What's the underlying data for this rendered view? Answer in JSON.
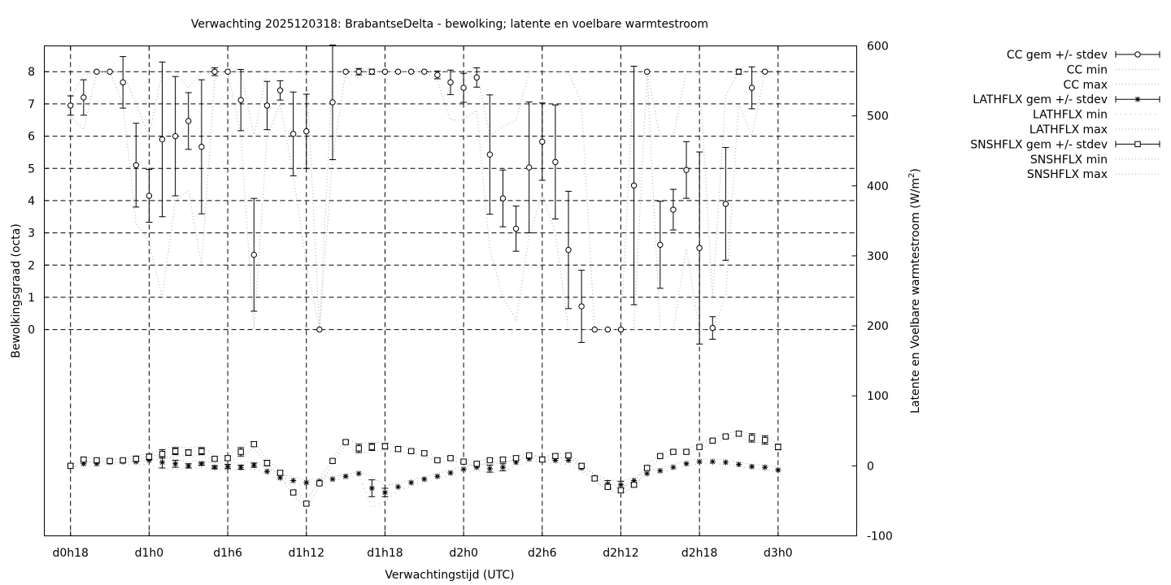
{
  "chart_data": {
    "type": "scatter",
    "title": "Verwachting 2025120318: BrabantseDelta - bewolking; latente en voelbare warmtestroom",
    "xlabel": "Verwachtingstijd (UTC)",
    "ylabel": "Bewolkingsgraad (octa)",
    "y2label_main": "Latente en Voelbare warmtestroom (W/m",
    "y2label_sup": "2",
    "y2label_end": ")",
    "x_ticks": [
      {
        "label": "d0h18",
        "h": 18
      },
      {
        "label": "d1h0",
        "h": 24
      },
      {
        "label": "d1h6",
        "h": 30
      },
      {
        "label": "d1h12",
        "h": 36
      },
      {
        "label": "d1h18",
        "h": 42
      },
      {
        "label": "d2h0",
        "h": 48
      },
      {
        "label": "d2h6",
        "h": 54
      },
      {
        "label": "d2h12",
        "h": 60
      },
      {
        "label": "d2h18",
        "h": 66
      },
      {
        "label": "d3h0",
        "h": 72
      }
    ],
    "xlim_hours": [
      16,
      78
    ],
    "ylim": [
      -6.4,
      8.8
    ],
    "y_ticks": [
      0,
      1,
      2,
      3,
      4,
      5,
      6,
      7,
      8
    ],
    "y2lim": [
      -100,
      600
    ],
    "y2_ticks": [
      -100,
      0,
      100,
      200,
      300,
      400,
      500,
      600
    ],
    "grid": true,
    "legend_position": "outside-right",
    "legend": [
      {
        "label": "CC gem +/- stdev",
        "style": "errorbar-circle"
      },
      {
        "label": "CC min",
        "style": "dotted"
      },
      {
        "label": "CC max",
        "style": "dotted"
      },
      {
        "label": "LATHFLX gem +/- stdev",
        "style": "errorbar-star"
      },
      {
        "label": "LATHFLX min",
        "style": "dotted-sparse"
      },
      {
        "label": "LATHFLX max",
        "style": "dotted"
      },
      {
        "label": "SNSHFLX gem +/- stdev",
        "style": "errorbar-square"
      },
      {
        "label": "SNSHFLX min",
        "style": "dotted"
      },
      {
        "label": "SNSHFLX max",
        "style": "dotted"
      }
    ],
    "x_hours": [
      18,
      19,
      20,
      21,
      22,
      23,
      24,
      25,
      26,
      27,
      28,
      29,
      30,
      31,
      32,
      33,
      34,
      35,
      36,
      37,
      38,
      39,
      40,
      41,
      42,
      43,
      44,
      45,
      46,
      47,
      48,
      49,
      50,
      51,
      52,
      53,
      54,
      55,
      56,
      57,
      58,
      59,
      60,
      61,
      62,
      63,
      64,
      65,
      66,
      67,
      68,
      69,
      70,
      71,
      72
    ],
    "series": [
      {
        "name": "CC gem +/- stdev",
        "axis": "y1",
        "marker": "circle",
        "mean": [
          6.95,
          7.2,
          8,
          8,
          7.67,
          5.1,
          4.15,
          5.9,
          6.0,
          6.47,
          5.67,
          8.0,
          8.0,
          7.12,
          2.32,
          6.95,
          7.42,
          6.07,
          6.15,
          0,
          7.05,
          8,
          8,
          8,
          8,
          8,
          8,
          8,
          7.9,
          7.67,
          7.5,
          7.82,
          5.43,
          4.07,
          3.13,
          5.03,
          5.83,
          5.2,
          2.47,
          0.72,
          0,
          0,
          0,
          4.47,
          8,
          2.63,
          3.72,
          4.95,
          2.53,
          0.05,
          3.9,
          8,
          7.5,
          8,
          null
        ],
        "err": [
          0.3,
          0.55,
          0,
          0,
          0.8,
          1.3,
          0.82,
          2.4,
          1.85,
          0.88,
          2.08,
          0.12,
          0,
          0.95,
          1.75,
          0.75,
          0.3,
          1.3,
          1.15,
          0,
          1.78,
          0,
          0.1,
          0.08,
          0,
          0,
          0,
          0,
          0.12,
          0.38,
          0.45,
          0.3,
          1.85,
          0.88,
          0.7,
          2.03,
          1.2,
          1.77,
          1.82,
          1.12,
          0,
          0,
          0,
          3.7,
          0,
          1.35,
          0.63,
          0.88,
          2.98,
          0.35,
          1.75,
          0.08,
          0.65,
          0,
          null
        ]
      },
      {
        "name": "CC min",
        "axis": "y1",
        "values": [
          6.6,
          6.2,
          8,
          8,
          7,
          3.3,
          2.7,
          1.0,
          4.0,
          4.3,
          2.0,
          7.8,
          8,
          6.0,
          0,
          6.0,
          7.0,
          4.8,
          2.0,
          0,
          5.3,
          8,
          7.8,
          8,
          8,
          8,
          8,
          8,
          7.7,
          6.5,
          6.5,
          6.8,
          2.5,
          1.0,
          0.3,
          2.9,
          4.2,
          3.0,
          0,
          0,
          0,
          0,
          0,
          0,
          8,
          0,
          0,
          2.5,
          0,
          0,
          1.0,
          7.0,
          6.0,
          8,
          null
        ]
      },
      {
        "name": "CC max",
        "axis": "y1",
        "values": [
          7.2,
          7.9,
          8,
          8,
          8,
          7.0,
          6.0,
          8.0,
          8.0,
          7.5,
          8.0,
          8,
          8,
          8,
          6.0,
          8,
          8,
          8,
          8,
          0,
          8,
          8,
          8,
          8,
          8,
          8,
          8,
          8,
          8,
          8,
          8,
          8,
          6.0,
          6.3,
          6.5,
          8,
          8,
          8,
          8,
          7.0,
          0,
          0,
          0,
          8,
          8,
          6.0,
          6.0,
          8,
          8,
          1.0,
          7.3,
          8,
          8,
          8,
          null
        ]
      },
      {
        "name": "LATHFLX gem +/- stdev",
        "axis": "y2",
        "marker": "star",
        "mean": [
          0,
          3,
          3,
          5,
          6,
          6,
          8,
          5,
          3,
          0,
          3,
          -2,
          -1,
          -2,
          1,
          -8,
          -17,
          -21,
          -24,
          -22,
          -19,
          -15,
          -11,
          -32,
          -38,
          -30,
          -24,
          -19,
          -15,
          -10,
          -5,
          -2,
          -4,
          -2,
          5,
          10,
          10,
          8,
          8,
          -3,
          -17,
          -26,
          -27,
          -21,
          -11,
          -7,
          -2,
          3,
          6,
          6,
          5,
          2,
          -1,
          -2,
          -6
        ],
        "err": [
          0,
          0,
          0,
          0,
          0,
          0,
          0,
          8,
          5,
          3,
          2,
          2,
          3,
          3,
          3,
          0,
          0,
          0,
          0,
          0,
          0,
          0,
          0,
          12,
          6,
          0,
          0,
          0,
          0,
          0,
          0,
          0,
          5,
          5,
          0,
          0,
          0,
          0,
          0,
          0,
          0,
          5,
          5,
          0,
          0,
          0,
          0,
          0,
          0,
          0,
          0,
          0,
          0,
          0,
          0
        ]
      },
      {
        "name": "LATHFLX min",
        "axis": "y2",
        "values": [
          -2,
          0,
          0,
          2,
          3,
          2,
          2,
          -5,
          -5,
          -5,
          -2,
          -6,
          -6,
          -6,
          -4,
          -12,
          -22,
          -26,
          -28,
          -25,
          -22,
          -18,
          -14,
          -60,
          -50,
          -36,
          -29,
          -23,
          -19,
          -14,
          -10,
          -7,
          -10,
          -8,
          0,
          6,
          5,
          3,
          2,
          -8,
          -22,
          -33,
          -30,
          -24,
          -14,
          -10,
          -5,
          0,
          3,
          3,
          2,
          -1,
          -4,
          -6,
          -10
        ]
      },
      {
        "name": "LATHFLX max",
        "axis": "y2",
        "values": [
          2,
          6,
          6,
          8,
          9,
          10,
          14,
          15,
          10,
          6,
          8,
          4,
          4,
          4,
          7,
          -4,
          -12,
          -16,
          -20,
          -18,
          -15,
          -12,
          -8,
          -15,
          -28,
          -25,
          -20,
          -15,
          -11,
          -6,
          -1,
          3,
          2,
          4,
          10,
          14,
          14,
          12,
          12,
          2,
          -12,
          -20,
          -22,
          -17,
          -7,
          -3,
          2,
          7,
          10,
          10,
          9,
          5,
          2,
          1,
          -2
        ]
      },
      {
        "name": "SNSHFLX gem +/- stdev",
        "axis": "y2",
        "marker": "square",
        "mean": [
          0,
          9,
          8,
          7,
          8,
          10,
          13,
          17,
          21,
          19,
          21,
          10,
          11,
          20,
          31,
          4,
          -10,
          -38,
          -54,
          -25,
          7,
          34,
          25,
          27,
          28,
          24,
          21,
          18,
          8,
          11,
          6,
          3,
          8,
          9,
          11,
          15,
          9,
          14,
          15,
          0,
          -18,
          -30,
          -35,
          -27,
          -3,
          14,
          20,
          20,
          27,
          36,
          42,
          46,
          40,
          37,
          27
        ],
        "err": [
          2,
          3,
          2,
          2,
          2,
          4,
          4,
          6,
          5,
          4,
          5,
          2,
          3,
          6,
          3,
          4,
          3,
          3,
          2,
          2,
          2,
          2,
          6,
          5,
          4,
          3,
          2,
          3,
          2,
          2,
          2,
          2,
          2,
          3,
          3,
          3,
          3,
          3,
          2,
          3,
          3,
          3,
          3,
          3,
          3,
          2,
          2,
          2,
          2,
          2,
          2,
          3,
          6,
          6,
          4
        ]
      },
      {
        "name": "SNSHFLX min",
        "axis": "y2",
        "values": [
          -3,
          5,
          5,
          4,
          5,
          6,
          8,
          10,
          14,
          14,
          15,
          7,
          7,
          12,
          26,
          0,
          -14,
          -44,
          -58,
          -30,
          3,
          30,
          18,
          20,
          22,
          20,
          17,
          15,
          5,
          8,
          3,
          0,
          5,
          6,
          8,
          12,
          6,
          10,
          12,
          -3,
          -22,
          -34,
          -40,
          -30,
          -6,
          10,
          16,
          17,
          23,
          32,
          38,
          42,
          34,
          32,
          22
        ]
      },
      {
        "name": "SNSHFLX max",
        "axis": "y2",
        "values": [
          3,
          12,
          11,
          10,
          11,
          14,
          18,
          24,
          28,
          25,
          28,
          14,
          15,
          28,
          36,
          8,
          -6,
          -32,
          -50,
          -20,
          11,
          38,
          32,
          34,
          34,
          29,
          26,
          22,
          11,
          14,
          9,
          6,
          11,
          12,
          14,
          18,
          12,
          18,
          18,
          3,
          -14,
          -26,
          -30,
          -23,
          1,
          18,
          24,
          24,
          31,
          40,
          46,
          50,
          46,
          42,
          32
        ]
      }
    ]
  }
}
